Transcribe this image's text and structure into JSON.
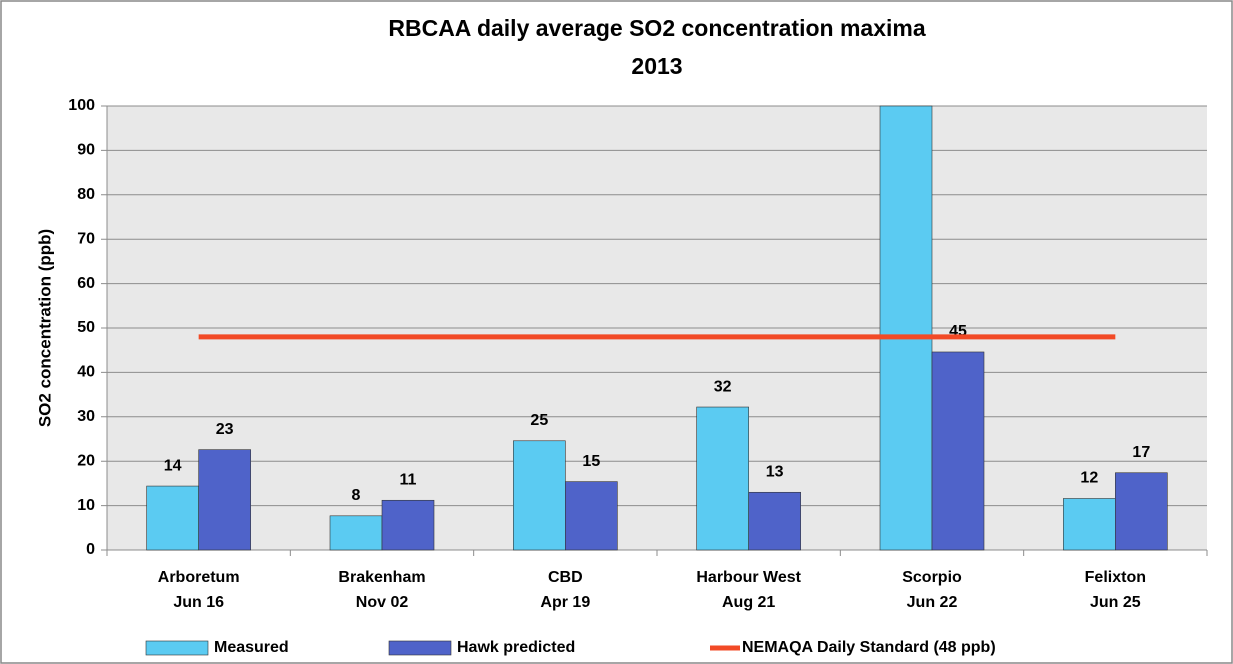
{
  "chart_data": {
    "type": "bar",
    "title": [
      "RBCAA daily average SO2 concentration maxima",
      "2013"
    ],
    "y_label": "SO2 concentration (ppb)",
    "categories": [
      [
        "Arboretum",
        "Jun 16"
      ],
      [
        "Brakenham",
        "Nov 02"
      ],
      [
        "CBD",
        "Apr 19"
      ],
      [
        "Harbour West",
        "Aug 21"
      ],
      [
        "Scorpio",
        "Jun 22"
      ],
      [
        "Felixton",
        "Jun 25"
      ]
    ],
    "series": [
      {
        "name": "Measured",
        "color": "#5bcbf2",
        "values": [
          14.4,
          7.7,
          24.6,
          32.2,
          100,
          11.6
        ],
        "value_labels": [
          "14",
          "8",
          "25",
          "32",
          null,
          "12"
        ]
      },
      {
        "name": "Hawk predicted",
        "color": "#4f63c9",
        "values": [
          22.6,
          11.2,
          15.4,
          13,
          44.6,
          17.4
        ],
        "value_labels": [
          "23",
          "11",
          "15",
          "13",
          "45",
          "17"
        ]
      },
      {
        "name": "NEMAQA Daily Standard (48 ppb)",
        "type": "line",
        "color": "#f24a26",
        "values": [
          48,
          48,
          48,
          48,
          48,
          48
        ]
      }
    ],
    "ylim": [
      0,
      100
    ],
    "yticks": [
      0,
      10,
      20,
      30,
      40,
      50,
      60,
      70,
      80,
      90,
      100
    ],
    "grid": true,
    "legend": "bottom"
  }
}
